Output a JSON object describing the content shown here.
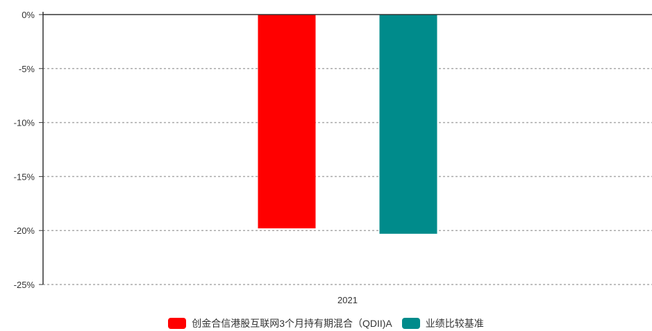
{
  "chart_data": {
    "type": "bar",
    "categories": [
      "2021"
    ],
    "series": [
      {
        "name": "创金合信港股互联网3个月持有期混合（QDII)A",
        "values": [
          -19.8
        ],
        "color": "#ff0000"
      },
      {
        "name": "业绩比较基准",
        "values": [
          -20.3
        ],
        "color": "#008b8b"
      }
    ],
    "ylim": [
      -25,
      0
    ],
    "yticks": [
      0,
      -5,
      -10,
      -15,
      -20,
      -25
    ],
    "ytick_labels": [
      "0%",
      "-5%",
      "-10%",
      "-15%",
      "-20%",
      "-25%"
    ],
    "grid": true,
    "legend_position": "bottom",
    "title": "",
    "xlabel": "",
    "ylabel": ""
  }
}
